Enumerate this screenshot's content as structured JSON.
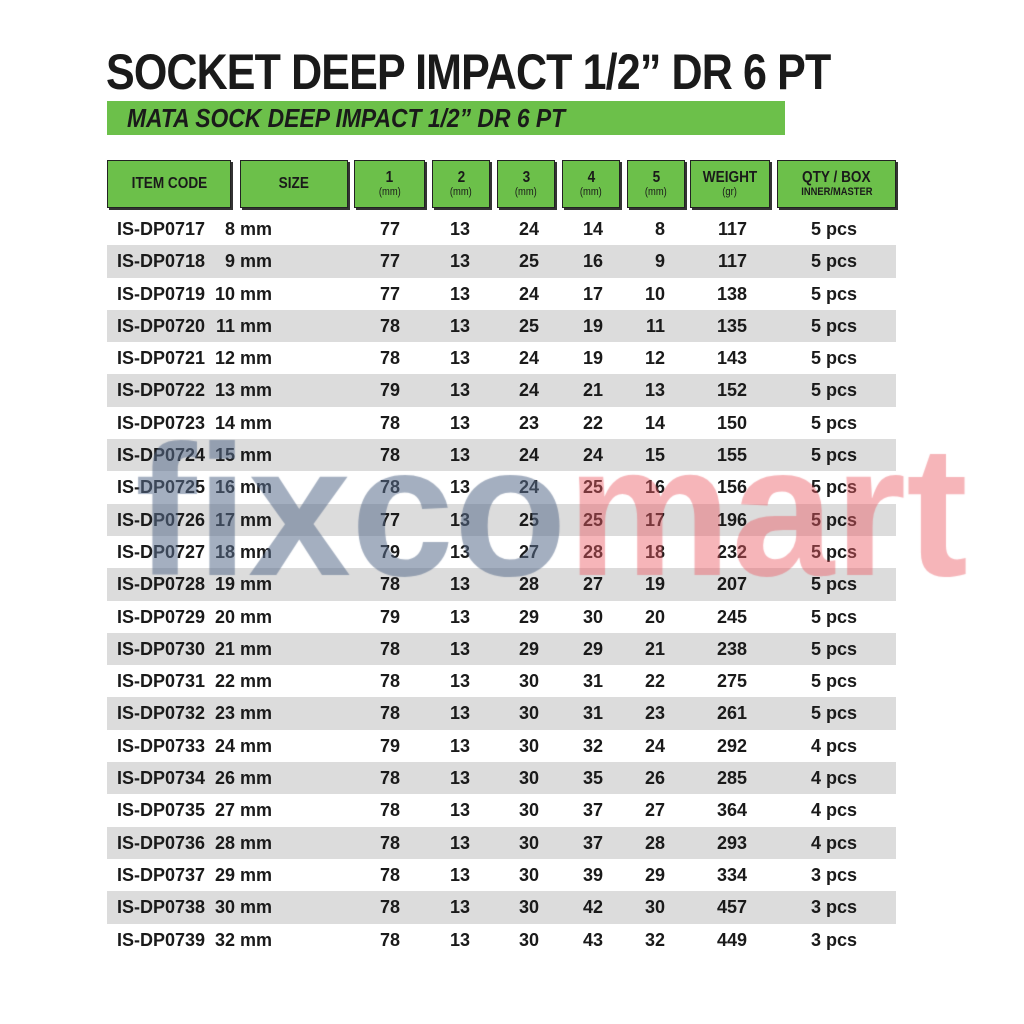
{
  "title": "SOCKET DEEP IMPACT 1/2” DR 6 PT",
  "subtitle": "MATA SOCK DEEP IMPACT 1/2” DR 6 PT",
  "colors": {
    "header_green": "#6cc04a",
    "row_alt": "#dcdcdc",
    "text": "#1a1a1a"
  },
  "watermark": {
    "part1": "fixco",
    "part2": "mart"
  },
  "columns": [
    {
      "label": "ITEM CODE",
      "sub": ""
    },
    {
      "label": "SIZE",
      "sub": ""
    },
    {
      "label": "1",
      "sub": "(mm)"
    },
    {
      "label": "2",
      "sub": "(mm)"
    },
    {
      "label": "3",
      "sub": "(mm)"
    },
    {
      "label": "4",
      "sub": "(mm)"
    },
    {
      "label": "5",
      "sub": "(mm)"
    },
    {
      "label": "WEIGHT",
      "sub": "(gr)"
    },
    {
      "label": "QTY / BOX",
      "sub": "INNER/MASTER"
    }
  ],
  "rows": [
    [
      "IS-DP0717",
      "8 mm",
      "77",
      "13",
      "24",
      "14",
      "8",
      "117",
      "5 pcs"
    ],
    [
      "IS-DP0718",
      "9 mm",
      "77",
      "13",
      "25",
      "16",
      "9",
      "117",
      "5 pcs"
    ],
    [
      "IS-DP0719",
      "10 mm",
      "77",
      "13",
      "24",
      "17",
      "10",
      "138",
      "5 pcs"
    ],
    [
      "IS-DP0720",
      "11 mm",
      "78",
      "13",
      "25",
      "19",
      "11",
      "135",
      "5 pcs"
    ],
    [
      "IS-DP0721",
      "12 mm",
      "78",
      "13",
      "24",
      "19",
      "12",
      "143",
      "5 pcs"
    ],
    [
      "IS-DP0722",
      "13 mm",
      "79",
      "13",
      "24",
      "21",
      "13",
      "152",
      "5 pcs"
    ],
    [
      "IS-DP0723",
      "14 mm",
      "78",
      "13",
      "23",
      "22",
      "14",
      "150",
      "5 pcs"
    ],
    [
      "IS-DP0724",
      "15 mm",
      "78",
      "13",
      "24",
      "24",
      "15",
      "155",
      "5 pcs"
    ],
    [
      "IS-DP0725",
      "16 mm",
      "78",
      "13",
      "24",
      "25",
      "16",
      "156",
      "5 pcs"
    ],
    [
      "IS-DP0726",
      "17 mm",
      "77",
      "13",
      "25",
      "25",
      "17",
      "196",
      "5 pcs"
    ],
    [
      "IS-DP0727",
      "18 mm",
      "79",
      "13",
      "27",
      "28",
      "18",
      "232",
      "5 pcs"
    ],
    [
      "IS-DP0728",
      "19 mm",
      "78",
      "13",
      "28",
      "27",
      "19",
      "207",
      "5 pcs"
    ],
    [
      "IS-DP0729",
      "20 mm",
      "79",
      "13",
      "29",
      "30",
      "20",
      "245",
      "5 pcs"
    ],
    [
      "IS-DP0730",
      "21 mm",
      "78",
      "13",
      "29",
      "29",
      "21",
      "238",
      "5 pcs"
    ],
    [
      "IS-DP0731",
      "22 mm",
      "78",
      "13",
      "30",
      "31",
      "22",
      "275",
      "5 pcs"
    ],
    [
      "IS-DP0732",
      "23 mm",
      "78",
      "13",
      "30",
      "31",
      "23",
      "261",
      "5 pcs"
    ],
    [
      "IS-DP0733",
      "24 mm",
      "79",
      "13",
      "30",
      "32",
      "24",
      "292",
      "4 pcs"
    ],
    [
      "IS-DP0734",
      "26 mm",
      "78",
      "13",
      "30",
      "35",
      "26",
      "285",
      "4 pcs"
    ],
    [
      "IS-DP0735",
      "27 mm",
      "78",
      "13",
      "30",
      "37",
      "27",
      "364",
      "4 pcs"
    ],
    [
      "IS-DP0736",
      "28 mm",
      "78",
      "13",
      "30",
      "37",
      "28",
      "293",
      "4 pcs"
    ],
    [
      "IS-DP0737",
      "29 mm",
      "78",
      "13",
      "30",
      "39",
      "29",
      "334",
      "3 pcs"
    ],
    [
      "IS-DP0738",
      "30 mm",
      "78",
      "13",
      "30",
      "42",
      "30",
      "457",
      "3 pcs"
    ],
    [
      "IS-DP0739",
      "32 mm",
      "78",
      "13",
      "30",
      "43",
      "32",
      "449",
      "3 pcs"
    ]
  ]
}
